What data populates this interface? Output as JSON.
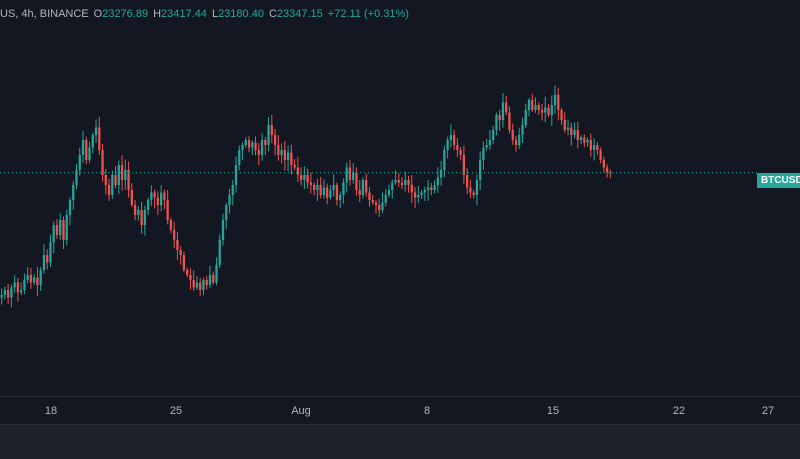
{
  "legend": {
    "symbol_line": "US, 4h, BINANCE",
    "open_key": "O",
    "open": "23276.89",
    "high_key": "H",
    "high": "23417.44",
    "low_key": "L",
    "low": "23180.40",
    "close_key": "C",
    "close": "23347.15",
    "change": "+72.11 (+0.31%)"
  },
  "price_label": "BTCUSD",
  "colors": {
    "background": "#131722",
    "up": "#26a69a",
    "down": "#ef5350",
    "last_price_line": "#26a69a",
    "text": "#b2b5be"
  },
  "time_axis": {
    "ticks": [
      "18",
      "25",
      "Aug",
      "8",
      "15",
      "22",
      "27"
    ]
  },
  "chart_data": {
    "type": "candlestick",
    "interval": "4h",
    "exchange": "BINANCE",
    "x_ticks": [
      "18",
      "25",
      "Aug",
      "8",
      "15",
      "22",
      "27"
    ],
    "last_price": 23347.15,
    "last_candle": {
      "open": 23276.89,
      "high": 23417.44,
      "low": 23180.4,
      "close": 23347.15,
      "change": 72.11,
      "change_pct": 0.31
    },
    "ylim": [
      19600,
      25400
    ],
    "series": [
      {
        "t": "Jul 16",
        "close": 20900
      },
      {
        "t": "Jul 16",
        "close": 21000
      },
      {
        "t": "Jul 16",
        "close": 20850
      },
      {
        "t": "Jul 16",
        "close": 21050
      },
      {
        "t": "Jul 16",
        "close": 21150
      },
      {
        "t": "Jul 16",
        "close": 20950
      },
      {
        "t": "Jul 17",
        "close": 21000
      },
      {
        "t": "Jul 17",
        "close": 21200
      },
      {
        "t": "Jul 17",
        "close": 21300
      },
      {
        "t": "Jul 17",
        "close": 21150
      },
      {
        "t": "Jul 17",
        "close": 21250
      },
      {
        "t": "Jul 17",
        "close": 21100
      },
      {
        "t": "Jul 18",
        "close": 21400
      },
      {
        "t": "Jul 18",
        "close": 21700
      },
      {
        "t": "Jul 18",
        "close": 21550
      },
      {
        "t": "Jul 18",
        "close": 21950
      },
      {
        "t": "Jul 18",
        "close": 22300
      },
      {
        "t": "Jul 18",
        "close": 22100
      },
      {
        "t": "Jul 19",
        "close": 22400
      },
      {
        "t": "Jul 19",
        "close": 22000
      },
      {
        "t": "Jul 19",
        "close": 22500
      },
      {
        "t": "Jul 19",
        "close": 22800
      },
      {
        "t": "Jul 19",
        "close": 23100
      },
      {
        "t": "Jul 19",
        "close": 23400
      },
      {
        "t": "Jul 20",
        "close": 23700
      },
      {
        "t": "Jul 20",
        "close": 24000
      },
      {
        "t": "Jul 20",
        "close": 23600
      },
      {
        "t": "Jul 20",
        "close": 23850
      },
      {
        "t": "Jul 20",
        "close": 24100
      },
      {
        "t": "Jul 20",
        "close": 24250
      },
      {
        "t": "Jul 21",
        "close": 23800
      },
      {
        "t": "Jul 21",
        "close": 23300
      },
      {
        "t": "Jul 21",
        "close": 23100
      },
      {
        "t": "Jul 21",
        "close": 22900
      },
      {
        "t": "Jul 21",
        "close": 23300
      },
      {
        "t": "Jul 21",
        "close": 23100
      },
      {
        "t": "Jul 22",
        "close": 23500
      },
      {
        "t": "Jul 22",
        "close": 23200
      },
      {
        "t": "Jul 22",
        "close": 23400
      },
      {
        "t": "Jul 22",
        "close": 23000
      },
      {
        "t": "Jul 22",
        "close": 22700
      },
      {
        "t": "Jul 22",
        "close": 22500
      },
      {
        "t": "Jul 23",
        "close": 22600
      },
      {
        "t": "Jul 23",
        "close": 22300
      },
      {
        "t": "Jul 23",
        "close": 22600
      },
      {
        "t": "Jul 23",
        "close": 22800
      },
      {
        "t": "Jul 23",
        "close": 22950
      },
      {
        "t": "Jul 23",
        "close": 22850
      },
      {
        "t": "Jul 24",
        "close": 22700
      },
      {
        "t": "Jul 24",
        "close": 22950
      },
      {
        "t": "Jul 24",
        "close": 22800
      },
      {
        "t": "Jul 24",
        "close": 22400
      },
      {
        "t": "Jul 24",
        "close": 22200
      },
      {
        "t": "Jul 24",
        "close": 22000
      },
      {
        "t": "Jul 25",
        "close": 21800
      },
      {
        "t": "Jul 25",
        "close": 21700
      },
      {
        "t": "Jul 25",
        "close": 21400
      },
      {
        "t": "Jul 25",
        "close": 21300
      },
      {
        "t": "Jul 25",
        "close": 21200
      },
      {
        "t": "Jul 25",
        "close": 21050
      },
      {
        "t": "Jul 26",
        "close": 21150
      },
      {
        "t": "Jul 26",
        "close": 21000
      },
      {
        "t": "Jul 26",
        "close": 21200
      },
      {
        "t": "Jul 26",
        "close": 21100
      },
      {
        "t": "Jul 26",
        "close": 21300
      },
      {
        "t": "Jul 26",
        "close": 21150
      },
      {
        "t": "Jul 27",
        "close": 21500
      },
      {
        "t": "Jul 27",
        "close": 22000
      },
      {
        "t": "Jul 27",
        "close": 22400
      },
      {
        "t": "Jul 27",
        "close": 22700
      },
      {
        "t": "Jul 27",
        "close": 22900
      },
      {
        "t": "Jul 27",
        "close": 23100
      },
      {
        "t": "Jul 28",
        "close": 23500
      },
      {
        "t": "Jul 28",
        "close": 23800
      },
      {
        "t": "Jul 28",
        "close": 23900
      },
      {
        "t": "Jul 28",
        "close": 24000
      },
      {
        "t": "Jul 28",
        "close": 23850
      },
      {
        "t": "Jul 28",
        "close": 23950
      },
      {
        "t": "Jul 29",
        "close": 23800
      },
      {
        "t": "Jul 29",
        "close": 23700
      },
      {
        "t": "Jul 29",
        "close": 24000
      },
      {
        "t": "Jul 29",
        "close": 23900
      },
      {
        "t": "Jul 29",
        "close": 24300
      },
      {
        "t": "Jul 29",
        "close": 24100
      },
      {
        "t": "Jul 30",
        "close": 23900
      },
      {
        "t": "Jul 30",
        "close": 23700
      },
      {
        "t": "Jul 30",
        "close": 23800
      },
      {
        "t": "Jul 30",
        "close": 23600
      },
      {
        "t": "Jul 30",
        "close": 23750
      },
      {
        "t": "Jul 30",
        "close": 23500
      },
      {
        "t": "Jul 31",
        "close": 23450
      },
      {
        "t": "Jul 31",
        "close": 23300
      },
      {
        "t": "Jul 31",
        "close": 23200
      },
      {
        "t": "Jul 31",
        "close": 23300
      },
      {
        "t": "Jul 31",
        "close": 23150
      },
      {
        "t": "Jul 31",
        "close": 23100
      },
      {
        "t": "Aug 1",
        "close": 23000
      },
      {
        "t": "Aug 1",
        "close": 23100
      },
      {
        "t": "Aug 1",
        "close": 22900
      },
      {
        "t": "Aug 1",
        "close": 23050
      },
      {
        "t": "Aug 1",
        "close": 22850
      },
      {
        "t": "Aug 1",
        "close": 23000
      },
      {
        "t": "Aug 2",
        "close": 23100
      },
      {
        "t": "Aug 2",
        "close": 22800
      },
      {
        "t": "Aug 2",
        "close": 22900
      },
      {
        "t": "Aug 2",
        "close": 23150
      },
      {
        "t": "Aug 2",
        "close": 23450
      },
      {
        "t": "Aug 2",
        "close": 23200
      },
      {
        "t": "Aug 3",
        "close": 23350
      },
      {
        "t": "Aug 3",
        "close": 23000
      },
      {
        "t": "Aug 3",
        "close": 22900
      },
      {
        "t": "Aug 3",
        "close": 23200
      },
      {
        "t": "Aug 3",
        "close": 22950
      },
      {
        "t": "Aug 3",
        "close": 22800
      },
      {
        "t": "Aug 4",
        "close": 22750
      },
      {
        "t": "Aug 4",
        "close": 22700
      },
      {
        "t": "Aug 4",
        "close": 22600
      },
      {
        "t": "Aug 4",
        "close": 22750
      },
      {
        "t": "Aug 4",
        "close": 22900
      },
      {
        "t": "Aug 4",
        "close": 23000
      },
      {
        "t": "Aug 5",
        "close": 23150
      },
      {
        "t": "Aug 5",
        "close": 23200
      },
      {
        "t": "Aug 5",
        "close": 23150
      },
      {
        "t": "Aug 5",
        "close": 23100
      },
      {
        "t": "Aug 5",
        "close": 23200
      },
      {
        "t": "Aug 5",
        "close": 23100
      },
      {
        "t": "Aug 6",
        "close": 22950
      },
      {
        "t": "Aug 6",
        "close": 22850
      },
      {
        "t": "Aug 6",
        "close": 22900
      },
      {
        "t": "Aug 6",
        "close": 22950
      },
      {
        "t": "Aug 6",
        "close": 23000
      },
      {
        "t": "Aug 6",
        "close": 23050
      },
      {
        "t": "Aug 7",
        "close": 23000
      },
      {
        "t": "Aug 7",
        "close": 23100
      },
      {
        "t": "Aug 7",
        "close": 23250
      },
      {
        "t": "Aug 7",
        "close": 23400
      },
      {
        "t": "Aug 7",
        "close": 23800
      },
      {
        "t": "Aug 7",
        "close": 24000
      },
      {
        "t": "Aug 8",
        "close": 24100
      },
      {
        "t": "Aug 8",
        "close": 23900
      },
      {
        "t": "Aug 8",
        "close": 23800
      },
      {
        "t": "Aug 8",
        "close": 23700
      },
      {
        "t": "Aug 8",
        "close": 23300
      },
      {
        "t": "Aug 8",
        "close": 23050
      },
      {
        "t": "Aug 9",
        "close": 22950
      },
      {
        "t": "Aug 9",
        "close": 22900
      },
      {
        "t": "Aug 9",
        "close": 23200
      },
      {
        "t": "Aug 9",
        "close": 23600
      },
      {
        "t": "Aug 9",
        "close": 23850
      },
      {
        "t": "Aug 9",
        "close": 23900
      },
      {
        "t": "Aug 10",
        "close": 24000
      },
      {
        "t": "Aug 10",
        "close": 24200
      },
      {
        "t": "Aug 10",
        "close": 24500
      },
      {
        "t": "Aug 10",
        "close": 24400
      },
      {
        "t": "Aug 10",
        "close": 24750
      },
      {
        "t": "Aug 10",
        "close": 24550
      },
      {
        "t": "Aug 11",
        "close": 24200
      },
      {
        "t": "Aug 11",
        "close": 24000
      },
      {
        "t": "Aug 11",
        "close": 23900
      },
      {
        "t": "Aug 11",
        "close": 24100
      },
      {
        "t": "Aug 11",
        "close": 24300
      },
      {
        "t": "Aug 11",
        "close": 24600
      },
      {
        "t": "Aug 12",
        "close": 24800
      },
      {
        "t": "Aug 12",
        "close": 24600
      },
      {
        "t": "Aug 12",
        "close": 24700
      },
      {
        "t": "Aug 12",
        "close": 24600
      },
      {
        "t": "Aug 12",
        "close": 24550
      },
      {
        "t": "Aug 12",
        "close": 24650
      },
      {
        "t": "Aug 13",
        "close": 24500
      },
      {
        "t": "Aug 13",
        "close": 24700
      },
      {
        "t": "Aug 13",
        "close": 24900
      },
      {
        "t": "Aug 13",
        "close": 24600
      },
      {
        "t": "Aug 13",
        "close": 24400
      },
      {
        "t": "Aug 13",
        "close": 24200
      },
      {
        "t": "Aug 14",
        "close": 24250
      },
      {
        "t": "Aug 14",
        "close": 24100
      },
      {
        "t": "Aug 14",
        "close": 24200
      },
      {
        "t": "Aug 14",
        "close": 24000
      },
      {
        "t": "Aug 14",
        "close": 24050
      },
      {
        "t": "Aug 14",
        "close": 23950
      },
      {
        "t": "Aug 15",
        "close": 24000
      },
      {
        "t": "Aug 15",
        "close": 23800
      },
      {
        "t": "Aug 15",
        "close": 23900
      },
      {
        "t": "Aug 15",
        "close": 23800
      },
      {
        "t": "Aug 15",
        "close": 23600
      },
      {
        "t": "Aug 15",
        "close": 23450
      },
      {
        "t": "Aug 16",
        "close": 23350
      },
      {
        "t": "Aug 16",
        "close": 23347.15
      }
    ]
  }
}
